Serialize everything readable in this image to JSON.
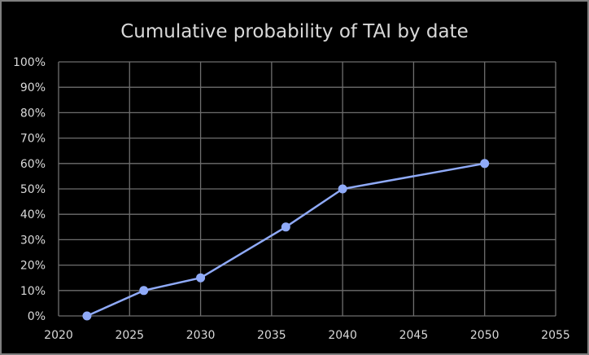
{
  "chart_data": {
    "type": "line",
    "title": "Cumulative probability of TAI by date",
    "xlabel": "",
    "ylabel": "",
    "xlim": [
      2020,
      2055
    ],
    "ylim": [
      0,
      100
    ],
    "x_ticks": [
      2020,
      2025,
      2030,
      2035,
      2040,
      2045,
      2050,
      2055
    ],
    "y_ticks": [
      0,
      10,
      20,
      30,
      40,
      50,
      60,
      70,
      80,
      90,
      100
    ],
    "y_tick_format": "percent",
    "grid": true,
    "legend": "none",
    "series": [
      {
        "name": "Cumulative probability",
        "x": [
          2022,
          2026,
          2030,
          2036,
          2040,
          2050
        ],
        "values": [
          0,
          10,
          15,
          35,
          50,
          60
        ],
        "color": "#8faaf8"
      }
    ]
  }
}
